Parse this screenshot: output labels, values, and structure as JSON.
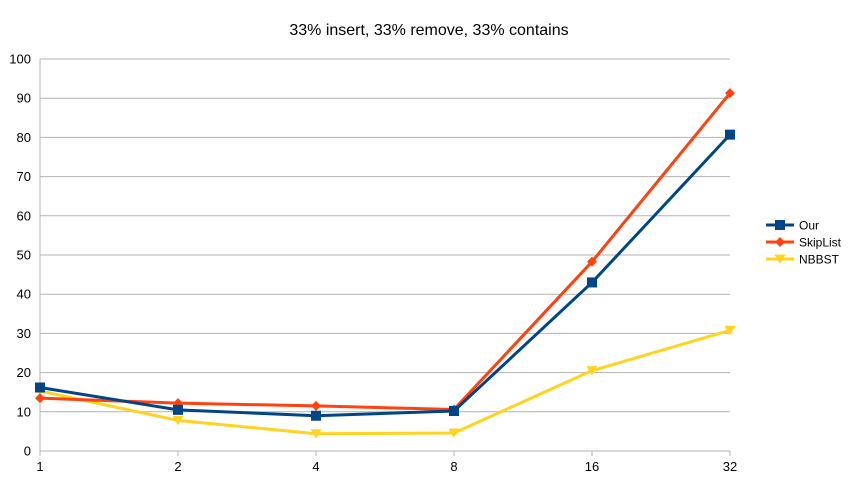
{
  "chart_data": {
    "type": "line",
    "title": "33% insert, 33% remove, 33% contains",
    "xlabel": "",
    "ylabel": "",
    "categories": [
      "1",
      "2",
      "4",
      "8",
      "16",
      "32"
    ],
    "ylim": [
      0,
      100
    ],
    "yticks": [
      0,
      10,
      20,
      30,
      40,
      50,
      60,
      70,
      80,
      90,
      100
    ],
    "grid": "horizontal",
    "legend_position": "right",
    "series": [
      {
        "name": "Our",
        "color": "#004586",
        "marker": "square",
        "values": [
          16.2,
          10.5,
          9.0,
          10.2,
          43.0,
          80.7
        ]
      },
      {
        "name": "SkipList",
        "color": "#ff420e",
        "marker": "diamond",
        "values": [
          13.5,
          12.2,
          11.5,
          10.6,
          48.3,
          91.3
        ]
      },
      {
        "name": "NBBST",
        "color": "#ffd320",
        "marker": "triangle-down",
        "values": [
          15.3,
          7.8,
          4.4,
          4.6,
          20.5,
          30.8
        ]
      }
    ]
  }
}
